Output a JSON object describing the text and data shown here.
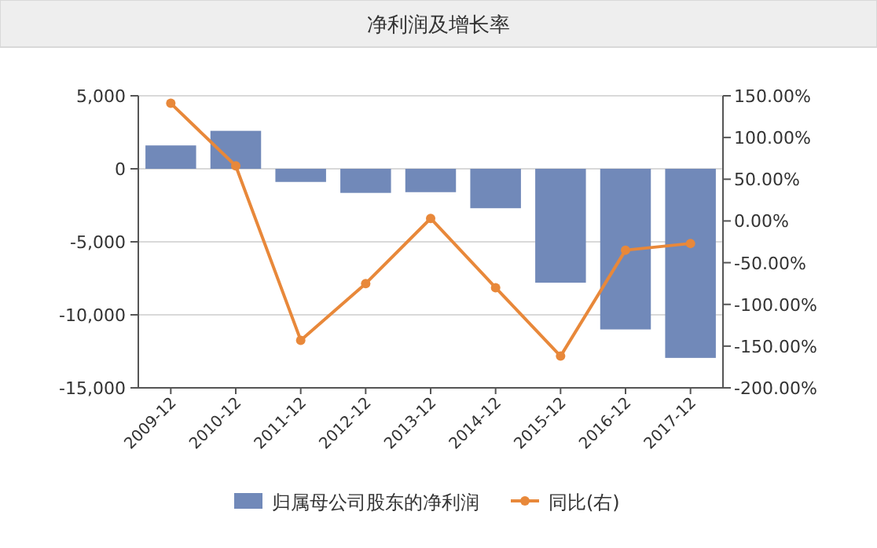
{
  "chart_data": {
    "type": "bar",
    "title": "净利润及增长率",
    "categories": [
      "2009-12",
      "2010-12",
      "2011-12",
      "2012-12",
      "2013-12",
      "2014-12",
      "2015-12",
      "2016-12",
      "2017-12"
    ],
    "series": [
      {
        "name": "归属母公司股东的净利润",
        "color": "#7189b9",
        "values": [
          1600,
          2600,
          -900,
          -1650,
          -1600,
          -2700,
          -7800,
          -11000,
          -12950
        ]
      },
      {
        "name": "同比(右)",
        "type": "line",
        "axis": "y2",
        "color": "#e8883a",
        "values": [
          141,
          66,
          -143,
          -75,
          3,
          -80,
          -162,
          -35,
          -27
        ]
      }
    ],
    "ylim": [
      -15000,
      5000
    ],
    "yticks": [
      {
        "value": 5000,
        "label": "5,000"
      },
      0,
      {
        "value": -5000,
        "label": "-5,000"
      },
      {
        "value": -10000,
        "label": "-10,000"
      },
      {
        "value": -15000,
        "label": "-15,000"
      }
    ],
    "y2lim": [
      -200,
      150
    ],
    "y2ticks": [
      {
        "value": 150,
        "label": "150.00%"
      },
      {
        "value": 100,
        "label": "100.00%"
      },
      {
        "value": 50,
        "label": "50.00%"
      },
      {
        "value": 0,
        "label": "0.00%"
      },
      {
        "value": -50,
        "label": "-50.00%"
      },
      {
        "value": -100,
        "label": "-100.00%"
      },
      {
        "value": -150,
        "label": "-150.00%"
      },
      {
        "value": -200,
        "label": "-200.00%"
      }
    ],
    "grid": "y",
    "legend": "bottom",
    "marker": "circle"
  }
}
